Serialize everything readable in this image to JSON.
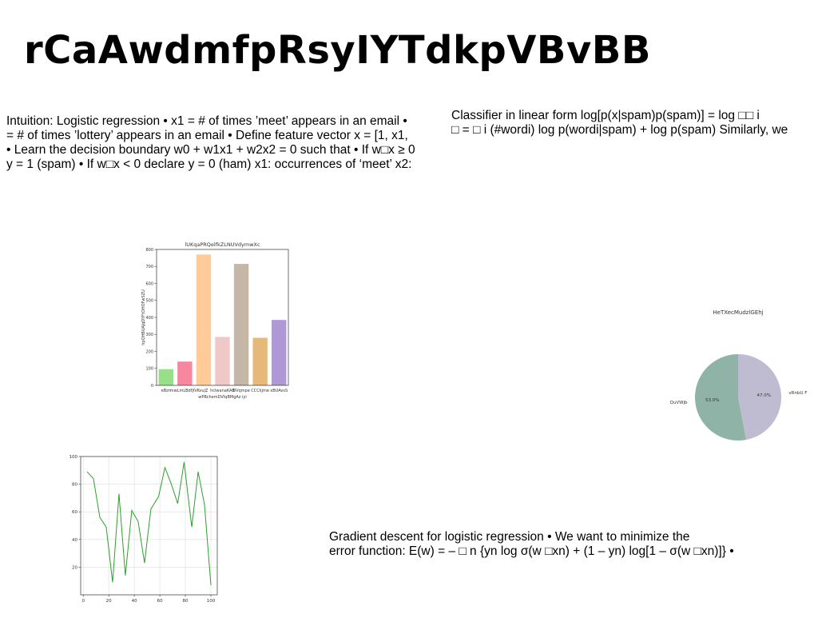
{
  "page": {
    "title": "rCaAwdmfpRsyIYTdkpVBvBB",
    "left_text": [
      "Intuition: Logistic regression • x1 = # of times ’meet’ appears in an email •",
      "= # of times ’lottery’ appears in an email • Define feature vector x = [1, x1,",
      "• Learn the decision boundary w0 + w1x1 + w2x2 = 0 such that • If w□x ≥ 0",
      "y = 1 (spam) • If w□x < 0 declare y = 0 (ham) x1: occurrences of ‘meet’ x2:"
    ],
    "right_text": [
      "Classifier in linear form log[p(x|spam)p(spam)] = log □□ i",
      "□ = □ i (#wordi) log p(wordi|spam) + log p(spam) Similarly, we"
    ],
    "bottom_text": [
      "Gradient descent for logistic regression • We want to minimize the",
      "error function: E(w) = – □ n {yn log σ(w □xn) + (1 – yn) log[1 – σ(w □xn)]} •"
    ]
  },
  "chart_data": [
    {
      "type": "bar",
      "title": "lUKqaPRQelfkZLNUVdymwXc",
      "xlabel": "wPBchemDVIqBMgAz iyi",
      "ylabel": "hpQHBUAJqDYFtOHOFwSZU",
      "categories": [
        "eBzn",
        "mwLmLBdfjlVK",
        "vujZ",
        "hclwanaKAB",
        "DVqmpe",
        "CCCkjme",
        "xBUAvsS"
      ],
      "values": [
        95,
        140,
        770,
        285,
        715,
        280,
        385
      ],
      "colors": [
        "#98df8a",
        "#f7879f",
        "#ffcc99",
        "#f0c8c8",
        "#c5b7a8",
        "#e6b87a",
        "#ae98d6"
      ],
      "ylim": [
        0,
        800
      ],
      "yticks": [
        0,
        100,
        200,
        300,
        400,
        500,
        600,
        700,
        800
      ]
    },
    {
      "type": "pie",
      "title": "HeTXecMudzlGEhj",
      "labels": [
        "QuVWjb",
        "vRnbU F"
      ],
      "values": [
        53.0,
        47.0
      ],
      "pct_labels": [
        "53.0%",
        "47.0%"
      ],
      "colors": [
        "#8fb3a6",
        "#bfbcd2"
      ]
    },
    {
      "type": "line",
      "x": [
        3,
        8,
        13,
        18,
        23,
        28,
        33,
        38,
        43,
        48,
        53,
        59,
        64,
        69,
        74,
        79,
        85,
        90,
        95,
        100
      ],
      "y": [
        89,
        84,
        56,
        49,
        9,
        73,
        14,
        61,
        53,
        23,
        62,
        71,
        92,
        80,
        66,
        96,
        49,
        89,
        65,
        7
      ],
      "color": "#2ca02c",
      "xlim": [
        -2,
        105
      ],
      "ylim": [
        0,
        100
      ],
      "xticks": [
        0,
        20,
        40,
        60,
        80,
        100
      ],
      "yticks": [
        20,
        40,
        60,
        80,
        100
      ],
      "grid": true
    }
  ]
}
